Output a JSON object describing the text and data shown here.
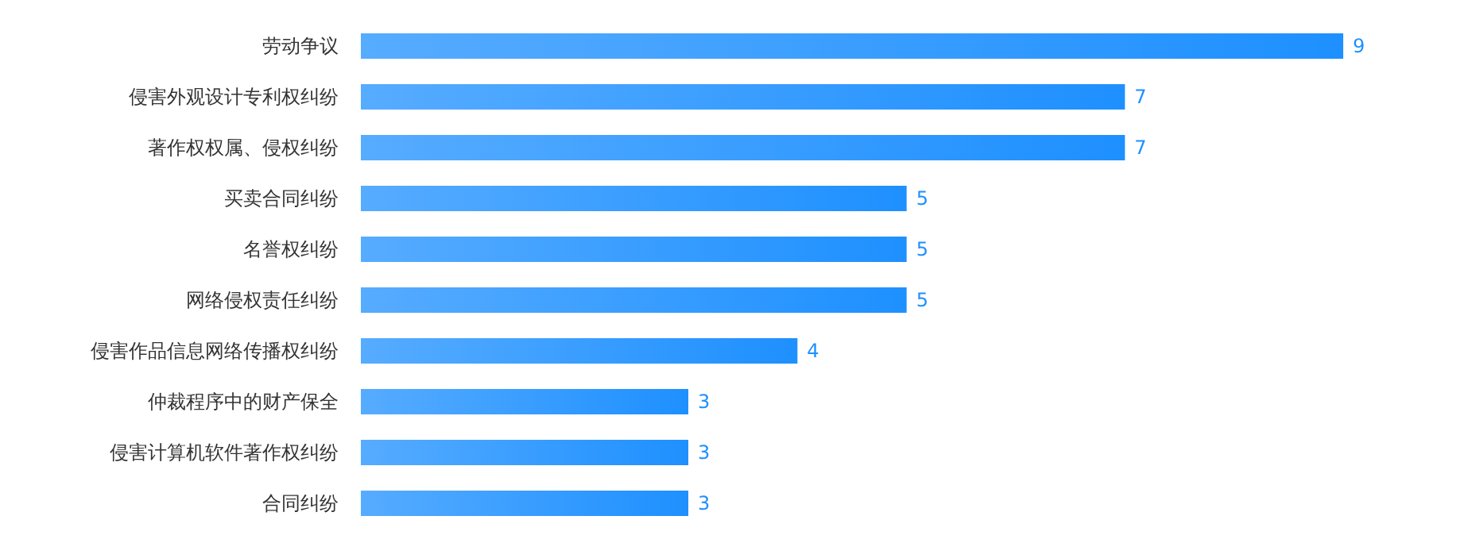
{
  "chart_data": {
    "type": "bar",
    "orientation": "horizontal",
    "categories": [
      "劳动争议",
      "侵害外观设计专利权纠纷",
      "著作权权属、侵权纠纷",
      "买卖合同纠纷",
      "名誉权纠纷",
      "网络侵权责任纠纷",
      "侵害作品信息网络传播权纠纷",
      "仲裁程序中的财产保全",
      "侵害计算机软件著作权纠纷",
      "合同纠纷"
    ],
    "values": [
      9,
      7,
      7,
      5,
      5,
      5,
      4,
      3,
      3,
      3
    ],
    "color": "#1e90ff",
    "data_labels": true
  }
}
